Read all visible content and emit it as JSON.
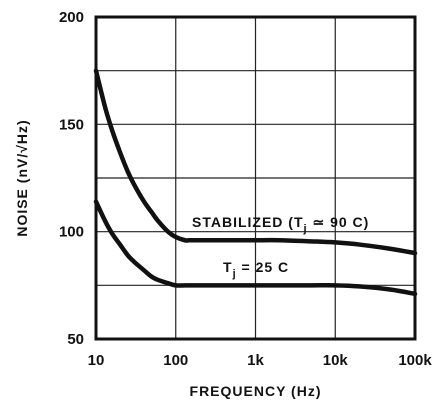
{
  "chart_data": {
    "type": "line",
    "xscale": "log",
    "xlabel": "FREQUENCY (Hz)",
    "ylabel": "NOISE (nV/√Hz)",
    "xlim": [
      10,
      100000
    ],
    "ylim": [
      50,
      200
    ],
    "grid": true,
    "x_ticks": [
      {
        "value": 10,
        "label": "10"
      },
      {
        "value": 100,
        "label": "100"
      },
      {
        "value": 1000,
        "label": "1k"
      },
      {
        "value": 10000,
        "label": "10k"
      },
      {
        "value": 100000,
        "label": "100k"
      }
    ],
    "y_ticks": [
      {
        "value": 50,
        "label": "50"
      },
      {
        "value": 100,
        "label": "100"
      },
      {
        "value": 150,
        "label": "150"
      },
      {
        "value": 200,
        "label": "200"
      }
    ],
    "series": [
      {
        "name": "STABILIZED (Tj ≃ 90 C)",
        "label_parts": [
          "STABILIZED (T",
          "j",
          " ≃ 90 C)"
        ],
        "color": "#111111",
        "x": [
          10,
          13,
          16,
          20,
          25,
          30,
          40,
          50,
          60,
          80,
          100,
          130,
          150,
          200,
          300,
          500,
          1000,
          2000,
          5000,
          10000,
          20000,
          50000,
          100000
        ],
        "y": [
          175,
          158,
          147,
          137,
          128,
          122,
          114,
          109,
          105,
          100,
          97.5,
          96,
          96,
          96,
          96,
          96,
          96,
          96,
          95.5,
          95,
          94,
          92,
          90
        ]
      },
      {
        "name": "Tj = 25 C",
        "label_parts": [
          "T",
          "j",
          " = 25 C"
        ],
        "color": "#111111",
        "x": [
          10,
          13,
          16,
          20,
          25,
          30,
          40,
          50,
          60,
          80,
          100,
          150,
          200,
          500,
          1000,
          2000,
          5000,
          10000,
          20000,
          50000,
          100000
        ],
        "y": [
          114,
          105,
          99,
          94,
          89,
          86,
          82,
          79,
          77.5,
          76,
          75,
          75,
          75,
          75,
          75,
          75,
          75,
          75,
          74.5,
          73,
          71
        ]
      }
    ]
  }
}
